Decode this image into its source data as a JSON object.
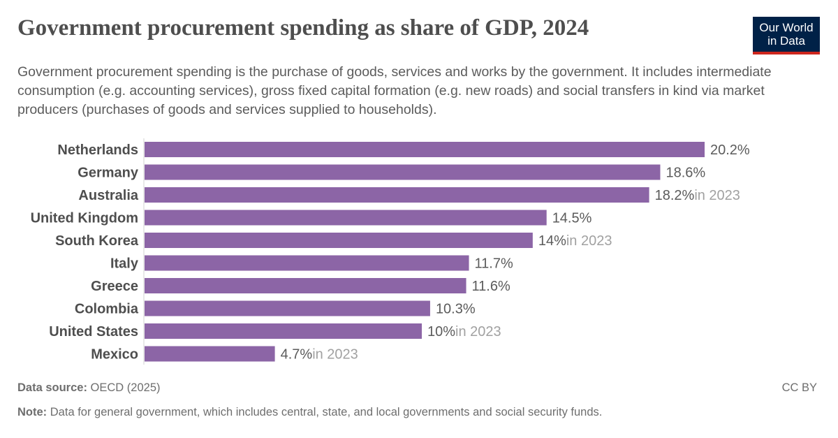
{
  "title": "Government procurement spending as share of GDP, 2024",
  "subtitle": "Government procurement spending is the purchase of goods, services and works by the government. It includes intermediate consumption (e.g. accounting services), gross fixed capital formation (e.g. new roads) and social transfers in kind via market producers (purchases of goods and services supplied to households).",
  "logo": {
    "line1": "Our World",
    "line2": "in Data"
  },
  "footer": {
    "source_label": "Data source:",
    "source": "OECD (2025)",
    "note_label": "Note:",
    "note": "Data for general government, which includes central, state, and local governments and social security funds.",
    "license": "CC BY"
  },
  "chart_data": {
    "type": "bar",
    "orientation": "horizontal",
    "unit": "%",
    "bar_color": "#8c65a6",
    "categories": [
      "Netherlands",
      "Germany",
      "Australia",
      "United Kingdom",
      "South Korea",
      "Italy",
      "Greece",
      "Colombia",
      "United States",
      "Mexico"
    ],
    "values": [
      20.2,
      18.6,
      18.2,
      14.5,
      14,
      11.7,
      11.6,
      10.3,
      10,
      4.7
    ],
    "value_labels": [
      "20.2%",
      "18.6%",
      "18.2%",
      "14.5%",
      "14%",
      "11.7%",
      "11.6%",
      "10.3%",
      "10%",
      "4.7%"
    ],
    "year_notes": [
      "",
      "",
      "in 2023",
      "",
      "in 2023",
      "",
      "",
      "",
      "in 2023",
      "in 2023"
    ],
    "xlim": [
      0,
      20.2
    ]
  }
}
